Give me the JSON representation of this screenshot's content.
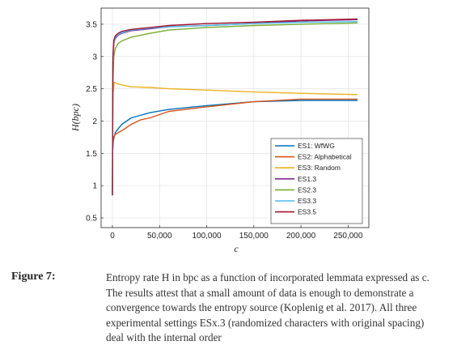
{
  "chart_data": {
    "type": "line",
    "xlabel": "c",
    "ylabel": "H(bpc)",
    "xlim": [
      -12000,
      272000
    ],
    "ylim": [
      0.35,
      3.75
    ],
    "xticks": [
      0,
      50000,
      100000,
      150000,
      200000,
      250000
    ],
    "xtick_labels": [
      "0",
      "50,000",
      "100,000",
      "150,000",
      "200,000",
      "250,000"
    ],
    "yticks": [
      0.5,
      1,
      1.5,
      2,
      2.5,
      3,
      3.5
    ],
    "ytick_labels": [
      "0.5",
      "1",
      "1.5",
      "2",
      "2.5",
      "3",
      "3.5"
    ],
    "grid": true,
    "legend_position": "lower-right",
    "series": [
      {
        "name": "ES1: WfWG",
        "color": "#0072bd",
        "x": [
          0,
          1000,
          3000,
          6000,
          10000,
          20000,
          40000,
          60000,
          100000,
          150000,
          200000,
          260000
        ],
        "y": [
          1.5,
          1.7,
          1.82,
          1.88,
          1.95,
          2.05,
          2.13,
          2.18,
          2.24,
          2.3,
          2.32,
          2.32
        ]
      },
      {
        "name": "ES2: Alphabetical",
        "color": "#d95319",
        "x": [
          0,
          1000,
          3000,
          6000,
          10000,
          20000,
          30000,
          40000,
          60000,
          100000,
          150000,
          200000,
          260000
        ],
        "y": [
          1.55,
          1.75,
          1.79,
          1.82,
          1.85,
          1.95,
          2.02,
          2.05,
          2.15,
          2.22,
          2.3,
          2.34,
          2.34
        ]
      },
      {
        "name": "ES3: Random",
        "color": "#edb120",
        "x": [
          0,
          2000,
          5000,
          10000,
          20000,
          40000,
          60000,
          100000,
          150000,
          200000,
          260000
        ],
        "y": [
          2.35,
          2.6,
          2.58,
          2.56,
          2.53,
          2.52,
          2.5,
          2.48,
          2.45,
          2.43,
          2.41
        ]
      },
      {
        "name": "ES1.3",
        "color": "#7e2f8e",
        "x": [
          0,
          500,
          1500,
          3000,
          6000,
          10000,
          20000,
          40000,
          60000,
          100000,
          150000,
          200000,
          260000
        ],
        "y": [
          0.85,
          2.9,
          3.2,
          3.28,
          3.33,
          3.36,
          3.4,
          3.43,
          3.46,
          3.48,
          3.51,
          3.55,
          3.57
        ]
      },
      {
        "name": "ES2.3",
        "color": "#77ac30",
        "x": [
          0,
          500,
          1500,
          3000,
          6000,
          10000,
          20000,
          40000,
          60000,
          100000,
          150000,
          200000,
          260000
        ],
        "y": [
          0.85,
          2.6,
          3.0,
          3.12,
          3.2,
          3.24,
          3.3,
          3.36,
          3.41,
          3.45,
          3.48,
          3.5,
          3.52
        ]
      },
      {
        "name": "ES3.3",
        "color": "#4dbeee",
        "x": [
          0,
          500,
          1500,
          3000,
          6000,
          10000,
          20000,
          40000,
          60000,
          100000,
          150000,
          200000,
          260000
        ],
        "y": [
          0.85,
          2.9,
          3.2,
          3.3,
          3.34,
          3.37,
          3.41,
          3.44,
          3.46,
          3.48,
          3.51,
          3.53,
          3.54
        ]
      },
      {
        "name": "ES3.5",
        "color": "#a2142f",
        "x": [
          0,
          500,
          1500,
          3000,
          6000,
          10000,
          20000,
          40000,
          60000,
          100000,
          150000,
          200000,
          260000
        ],
        "y": [
          0.85,
          3.0,
          3.25,
          3.32,
          3.36,
          3.39,
          3.42,
          3.45,
          3.48,
          3.51,
          3.53,
          3.56,
          3.58
        ]
      }
    ]
  },
  "caption": {
    "label": "Figure 7:",
    "text": "Entropy rate  H  in bpc as a function of incorporated lemmata expressed as c. The results attest that a small amount of data is enough to demonstrate a convergence towards the entropy source (Koplenig et al. 2017). All three experimental settings ESx.3 (randomized characters with original spacing) deal with the internal order"
  }
}
